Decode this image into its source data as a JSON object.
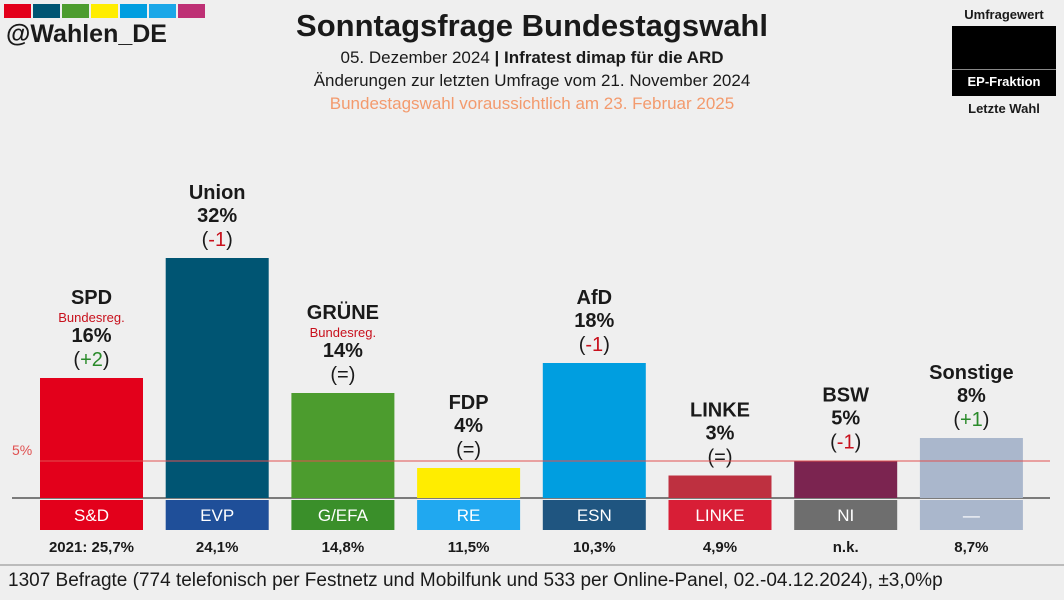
{
  "handle": "@Wahlen_DE",
  "flag_colors": [
    "#e3001b",
    "#005573",
    "#4c9c2e",
    "#ffed00",
    "#009ee0",
    "#1aa7e8",
    "#be3075"
  ],
  "header": {
    "title": "Sonntagsfrage Bundestagswahl",
    "date": "05. Dezember 2024",
    "separator": "|",
    "source": "Infratest dimap für die ARD",
    "changes_note": "Änderungen zur letzten Umfrage vom 21. November 2024",
    "election_note": "Bundestagswahl voraussichtlich am 23. Februar 2025"
  },
  "legend": {
    "top": "Umfragewert",
    "middle": "EP-Fraktion",
    "bottom": "Letzte Wahl"
  },
  "footer": "1307 Befragte (774 telefonisch per Festnetz und Mobilfunk und 533 per Online-Panel, 02.-04.12.2024), ±3,0%p",
  "chart_data": {
    "type": "bar",
    "title": "Sonntagsfrage Bundestagswahl",
    "categories": [
      "SPD",
      "Union",
      "GRÜNE",
      "FDP",
      "AfD",
      "LINKE",
      "BSW",
      "Sonstige"
    ],
    "values": [
      16,
      32,
      14,
      4,
      18,
      3,
      5,
      8
    ],
    "value_labels": [
      "16%",
      "32%",
      "14%",
      "4%",
      "18%",
      "3%",
      "5%",
      "8%"
    ],
    "changes": [
      "(+2)",
      "(-1)",
      "(=)",
      "(=)",
      "(-1)",
      "(=)",
      "(-1)",
      "(+1)"
    ],
    "change_direction": [
      "up",
      "down",
      "none",
      "none",
      "down",
      "none",
      "down",
      "up"
    ],
    "government_tags": [
      "Bundesreg.",
      "",
      "Bundesreg.",
      "",
      "",
      "",
      "",
      ""
    ],
    "colors": [
      "#e3001b",
      "#005573",
      "#4c9c2e",
      "#ffed00",
      "#009ee0",
      "#be3040",
      "#7b2450",
      "#aab7cc"
    ],
    "ep_groups": [
      "S&D",
      "EVP",
      "G/EFA",
      "RE",
      "ESN",
      "LINKE",
      "NI",
      "—"
    ],
    "ep_colors": [
      "#e3001b",
      "#1f4f99",
      "#3a8f2a",
      "#20a8f0",
      "#1f5580",
      "#d81e36",
      "#6e6e6e",
      "#aab7cc"
    ],
    "last_election": [
      "2021: 25,7%",
      "24,1%",
      "14,8%",
      "11,5%",
      "10,3%",
      "4,9%",
      "n.k.",
      "8,7%"
    ],
    "threshold": 5,
    "threshold_label": "5%",
    "threshold_color": "#e05050",
    "up_color": "#2a8a2a",
    "down_color": "#c8101c",
    "ylim": [
      0,
      32
    ]
  }
}
